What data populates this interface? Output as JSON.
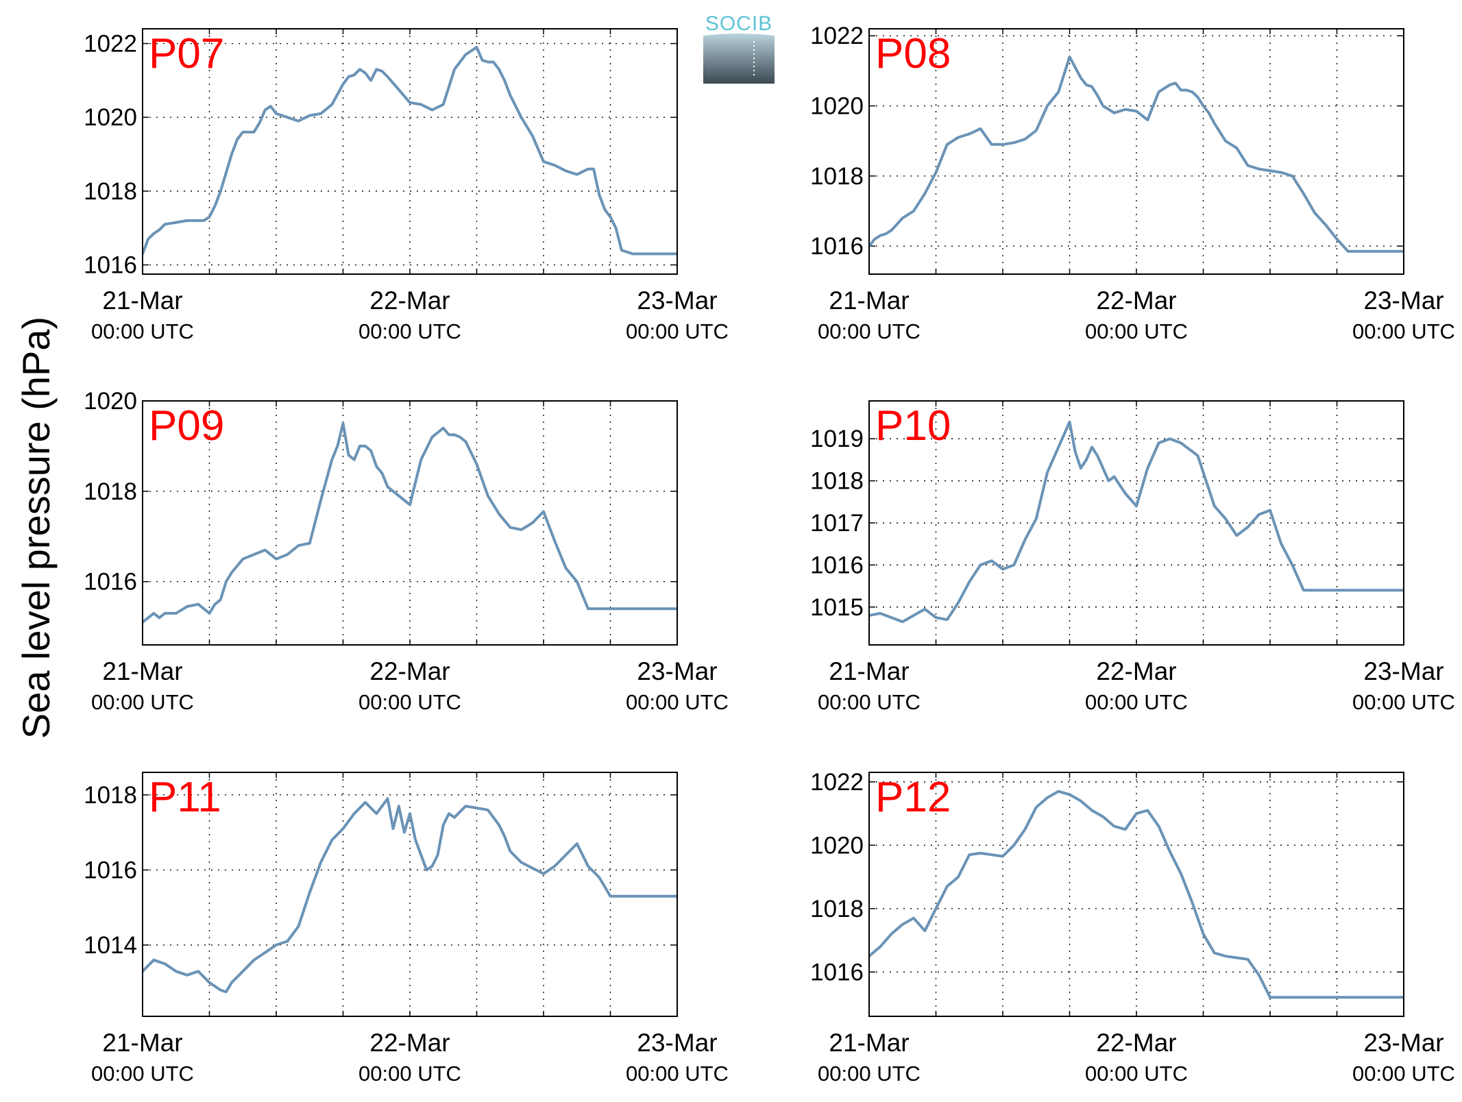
{
  "figure": {
    "ylabel": "Sea level pressure (hPa)",
    "logo_text": "SOCIB",
    "line_color": "#6a93b6",
    "label_color": "#ff0000",
    "logo_color_top": "#5ec3d6",
    "logo_color_bottom": "#3b4852"
  },
  "chart_data": [
    {
      "type": "line",
      "title": "P07",
      "xlim": [
        0,
        48
      ],
      "ylim": [
        1015.75,
        1022.4
      ],
      "yticks": [
        1016,
        1018,
        1020,
        1022
      ],
      "x_ticks": [
        {
          "date": "21-Mar",
          "time": "00:00 UTC"
        },
        {
          "date": "22-Mar",
          "time": "00:00 UTC"
        },
        {
          "date": "23-Mar",
          "time": "00:00 UTC"
        }
      ],
      "grid": true,
      "x": [
        0,
        0.5,
        1,
        1.5,
        2,
        3,
        4,
        5,
        5.5,
        6,
        6.5,
        7,
        7.5,
        8,
        8.5,
        9,
        10,
        10.5,
        11,
        11.5,
        12,
        13,
        14,
        15,
        16,
        17,
        18,
        18.5,
        19,
        19.5,
        20,
        20.5,
        21,
        21.5,
        22,
        23,
        24,
        25,
        26,
        27,
        28,
        29,
        30,
        30.5,
        31,
        31.5,
        32,
        32.5,
        33,
        34,
        35,
        36,
        37,
        38,
        39,
        40,
        40.5,
        41,
        41.5,
        42,
        42.5,
        43,
        44,
        45,
        45.5,
        46,
        46.5,
        47,
        47.5,
        48
      ],
      "values": [
        1016.3,
        1016.7,
        1016.85,
        1016.95,
        1017.1,
        1017.15,
        1017.2,
        1017.2,
        1017.2,
        1017.3,
        1017.6,
        1018.0,
        1018.5,
        1019.0,
        1019.4,
        1019.6,
        1019.6,
        1019.85,
        1020.2,
        1020.3,
        1020.1,
        1020.0,
        1019.9,
        1020.05,
        1020.1,
        1020.35,
        1020.9,
        1021.1,
        1021.15,
        1021.3,
        1021.2,
        1021.0,
        1021.3,
        1021.25,
        1021.1,
        1020.75,
        1020.4,
        1020.35,
        1020.2,
        1020.35,
        1021.3,
        1021.7,
        1021.9,
        1021.55,
        1021.5,
        1021.5,
        1021.3,
        1021.0,
        1020.6,
        1020.0,
        1019.5,
        1018.8,
        1018.7,
        1018.55,
        1018.45,
        1018.6,
        1018.6,
        1017.9,
        1017.5,
        1017.3,
        1017.0,
        1016.4,
        1016.3,
        1016.3,
        1016.3,
        1016.3,
        1016.3,
        1016.3,
        1016.3,
        1016.3
      ]
    },
    {
      "type": "line",
      "title": "P08",
      "xlim": [
        0,
        48
      ],
      "ylim": [
        1015.2,
        1022.2
      ],
      "yticks": [
        1016,
        1018,
        1020,
        1022
      ],
      "x_ticks": [
        {
          "date": "21-Mar",
          "time": "00:00 UTC"
        },
        {
          "date": "22-Mar",
          "time": "00:00 UTC"
        },
        {
          "date": "23-Mar",
          "time": "00:00 UTC"
        }
      ],
      "grid": true,
      "x": [
        0,
        0.5,
        1,
        1.5,
        2,
        3,
        4,
        5,
        6,
        7,
        8,
        9,
        10,
        11,
        12,
        13,
        14,
        15,
        16,
        17,
        18,
        19,
        19.5,
        20,
        20.5,
        21,
        21.5,
        22,
        23,
        24,
        25,
        26,
        27,
        27.5,
        28,
        28.5,
        29,
        29.5,
        30,
        30.5,
        31,
        32,
        33,
        34,
        35,
        36,
        37,
        38,
        39,
        40,
        41,
        42,
        43,
        44,
        45,
        46,
        46.5,
        47,
        47.5,
        48
      ],
      "values": [
        1016.0,
        1016.2,
        1016.3,
        1016.35,
        1016.45,
        1016.8,
        1017.0,
        1017.5,
        1018.1,
        1018.9,
        1019.1,
        1019.2,
        1019.35,
        1018.9,
        1018.9,
        1018.95,
        1019.05,
        1019.3,
        1020.0,
        1020.4,
        1021.4,
        1020.8,
        1020.6,
        1020.55,
        1020.3,
        1020.0,
        1019.9,
        1019.8,
        1019.9,
        1019.85,
        1019.6,
        1020.4,
        1020.6,
        1020.65,
        1020.45,
        1020.45,
        1020.4,
        1020.25,
        1020.0,
        1019.8,
        1019.5,
        1019.0,
        1018.8,
        1018.3,
        1018.2,
        1018.15,
        1018.1,
        1018.0,
        1017.5,
        1016.95,
        1016.6,
        1016.2,
        1015.85,
        1015.85,
        1015.85,
        1015.85,
        1015.85,
        1015.85,
        1015.85,
        1015.85
      ]
    },
    {
      "type": "line",
      "title": "P09",
      "xlim": [
        0,
        48
      ],
      "ylim": [
        1014.6,
        1020.0
      ],
      "yticks": [
        1016,
        1018,
        1020
      ],
      "x_ticks": [
        {
          "date": "21-Mar",
          "time": "00:00 UTC"
        },
        {
          "date": "22-Mar",
          "time": "00:00 UTC"
        },
        {
          "date": "23-Mar",
          "time": "00:00 UTC"
        }
      ],
      "grid": true,
      "x": [
        0,
        0.5,
        1,
        1.5,
        2,
        3,
        4,
        5,
        6,
        6.5,
        7,
        7.5,
        8,
        9,
        10,
        11,
        12,
        13,
        14,
        15,
        16,
        17,
        17.5,
        18,
        18.5,
        19,
        19.5,
        20,
        20.5,
        21,
        21.5,
        22,
        23,
        24,
        25,
        26,
        27,
        27.5,
        28,
        28.5,
        29,
        30,
        31,
        32,
        33,
        34,
        35,
        36,
        37,
        38,
        39,
        40,
        40.5,
        41,
        41.5,
        42,
        42.5,
        43,
        44,
        45,
        46,
        47,
        48
      ],
      "values": [
        1015.1,
        1015.2,
        1015.3,
        1015.2,
        1015.3,
        1015.3,
        1015.45,
        1015.5,
        1015.3,
        1015.5,
        1015.6,
        1016.0,
        1016.2,
        1016.5,
        1016.6,
        1016.7,
        1016.5,
        1016.6,
        1016.8,
        1016.85,
        1017.8,
        1018.7,
        1019.0,
        1019.5,
        1018.8,
        1018.7,
        1019.0,
        1019.0,
        1018.9,
        1018.55,
        1018.4,
        1018.1,
        1017.9,
        1017.7,
        1018.7,
        1019.2,
        1019.4,
        1019.25,
        1019.25,
        1019.2,
        1019.1,
        1018.6,
        1017.9,
        1017.5,
        1017.2,
        1017.15,
        1017.3,
        1017.55,
        1016.9,
        1016.3,
        1016.0,
        1015.4,
        1015.4,
        1015.4,
        1015.4,
        1015.4,
        1015.4,
        1015.4,
        1015.4,
        1015.4,
        1015.4,
        1015.4,
        1015.4
      ]
    },
    {
      "type": "line",
      "title": "P10",
      "xlim": [
        0,
        48
      ],
      "ylim": [
        1014.1,
        1019.9
      ],
      "yticks": [
        1015,
        1016,
        1017,
        1018,
        1019
      ],
      "x_ticks": [
        {
          "date": "21-Mar",
          "time": "00:00 UTC"
        },
        {
          "date": "22-Mar",
          "time": "00:00 UTC"
        },
        {
          "date": "23-Mar",
          "time": "00:00 UTC"
        }
      ],
      "grid": true,
      "x": [
        0,
        1,
        2,
        3,
        4,
        5,
        6,
        7,
        8,
        9,
        10,
        11,
        12,
        13,
        14,
        15,
        16,
        17,
        18,
        18.5,
        19,
        19.5,
        20,
        20.5,
        21,
        21.5,
        22,
        23,
        24,
        25,
        26,
        27,
        28,
        28.5,
        29,
        29.5,
        30,
        31,
        32,
        33,
        34,
        35,
        36,
        37,
        38,
        39,
        40,
        41,
        42,
        43,
        44,
        45,
        46,
        47,
        48
      ],
      "values": [
        1014.8,
        1014.85,
        1014.75,
        1014.65,
        1014.8,
        1014.95,
        1014.75,
        1014.7,
        1015.1,
        1015.6,
        1016.0,
        1016.1,
        1015.9,
        1016.0,
        1016.6,
        1017.1,
        1018.2,
        1018.8,
        1019.4,
        1018.7,
        1018.3,
        1018.5,
        1018.8,
        1018.6,
        1018.3,
        1018.0,
        1018.1,
        1017.7,
        1017.4,
        1018.3,
        1018.9,
        1019.0,
        1018.9,
        1018.8,
        1018.7,
        1018.6,
        1018.2,
        1017.4,
        1017.1,
        1016.7,
        1016.9,
        1017.2,
        1017.3,
        1016.5,
        1016.0,
        1015.4,
        1015.4,
        1015.4,
        1015.4,
        1015.4,
        1015.4,
        1015.4,
        1015.4,
        1015.4,
        1015.4
      ]
    },
    {
      "type": "line",
      "title": "P11",
      "xlim": [
        0,
        48
      ],
      "ylim": [
        1012.1,
        1018.6
      ],
      "yticks": [
        1014,
        1016,
        1018
      ],
      "x_ticks": [
        {
          "date": "21-Mar",
          "time": "00:00 UTC"
        },
        {
          "date": "22-Mar",
          "time": "00:00 UTC"
        },
        {
          "date": "23-Mar",
          "time": "00:00 UTC"
        }
      ],
      "grid": true,
      "x": [
        0,
        1,
        2,
        3,
        4,
        5,
        6,
        7,
        7.5,
        8,
        9,
        10,
        11,
        12,
        13,
        14,
        15,
        16,
        17,
        18,
        19,
        20,
        21,
        22,
        22.5,
        23,
        23.5,
        24,
        24.5,
        25,
        25.5,
        26,
        26.5,
        27,
        27.5,
        28,
        29,
        30,
        31,
        32,
        32.5,
        33,
        34,
        35,
        36,
        37,
        38,
        39,
        40,
        41,
        42,
        43,
        44,
        45,
        45.5,
        46,
        47,
        48
      ],
      "values": [
        1013.3,
        1013.6,
        1013.5,
        1013.3,
        1013.2,
        1013.3,
        1013.0,
        1012.8,
        1012.75,
        1013.0,
        1013.3,
        1013.6,
        1013.8,
        1014.0,
        1014.1,
        1014.5,
        1015.4,
        1016.2,
        1016.8,
        1017.1,
        1017.5,
        1017.8,
        1017.5,
        1017.9,
        1017.1,
        1017.7,
        1017.0,
        1017.5,
        1016.8,
        1016.4,
        1016.0,
        1016.1,
        1016.4,
        1017.2,
        1017.5,
        1017.4,
        1017.7,
        1017.65,
        1017.6,
        1017.2,
        1016.9,
        1016.5,
        1016.2,
        1016.05,
        1015.9,
        1016.1,
        1016.4,
        1016.7,
        1016.1,
        1015.8,
        1015.3,
        1015.3,
        1015.3,
        1015.3,
        1015.3,
        1015.3,
        1015.3,
        1015.3
      ]
    },
    {
      "type": "line",
      "title": "P12",
      "xlim": [
        0,
        48
      ],
      "ylim": [
        1014.6,
        1022.3
      ],
      "yticks": [
        1016,
        1018,
        1020,
        1022
      ],
      "x_ticks": [
        {
          "date": "21-Mar",
          "time": "00:00 UTC"
        },
        {
          "date": "22-Mar",
          "time": "00:00 UTC"
        },
        {
          "date": "23-Mar",
          "time": "00:00 UTC"
        }
      ],
      "grid": true,
      "x": [
        0,
        1,
        2,
        3,
        4,
        5,
        6,
        7,
        8,
        9,
        10,
        11,
        12,
        13,
        14,
        15,
        16,
        17,
        18,
        19,
        20,
        21,
        22,
        23,
        24,
        25,
        26,
        27,
        28,
        29,
        30,
        31,
        32,
        33,
        34,
        35,
        36,
        37,
        38,
        39,
        40,
        41,
        42,
        43,
        44,
        45,
        46,
        47,
        48
      ],
      "values": [
        1016.5,
        1016.8,
        1017.2,
        1017.5,
        1017.7,
        1017.3,
        1018.0,
        1018.7,
        1019.0,
        1019.7,
        1019.75,
        1019.7,
        1019.65,
        1020.0,
        1020.5,
        1021.2,
        1021.5,
        1021.7,
        1021.6,
        1021.4,
        1021.1,
        1020.9,
        1020.6,
        1020.5,
        1021.0,
        1021.1,
        1020.6,
        1019.8,
        1019.1,
        1018.2,
        1017.2,
        1016.6,
        1016.5,
        1016.45,
        1016.4,
        1015.9,
        1015.2,
        1015.2,
        1015.2,
        1015.2,
        1015.2,
        1015.2,
        1015.2,
        1015.2,
        1015.2,
        1015.2,
        1015.2,
        1015.2,
        1015.2
      ]
    }
  ]
}
